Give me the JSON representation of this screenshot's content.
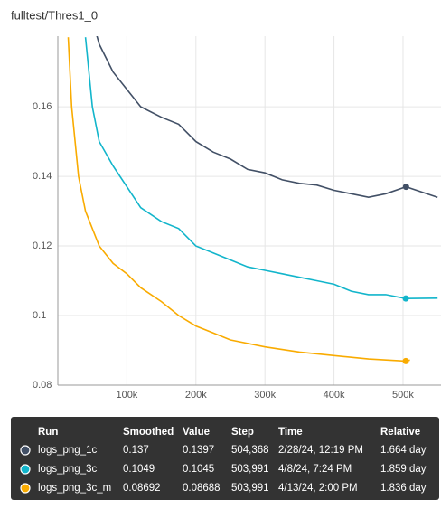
{
  "chart_data": {
    "type": "line",
    "title": "fulltest/Thres1_0",
    "xlim": [
      0,
      555000
    ],
    "ylim": [
      0.08,
      0.1803
    ],
    "yticks": [
      0.08,
      {
        "value": 0.1,
        "label": "0.1"
      },
      0.12,
      0.14,
      0.16
    ],
    "xticks": [
      {
        "value": 100000,
        "label": "100k"
      },
      {
        "value": 200000,
        "label": "200k"
      },
      {
        "value": 300000,
        "label": "300k"
      },
      {
        "value": 400000,
        "label": "400k"
      },
      {
        "value": 500000,
        "label": "500k"
      }
    ],
    "grid": true,
    "series": [
      {
        "name": "logs_png_1c",
        "color": "#425066",
        "x": [
          50000,
          60000,
          80000,
          100000,
          120000,
          150000,
          175000,
          200000,
          225000,
          250000,
          275000,
          300000,
          325000,
          350000,
          375000,
          400000,
          425000,
          450000,
          475000,
          504368,
          550000
        ],
        "values": [
          0.185,
          0.178,
          0.17,
          0.165,
          0.16,
          0.157,
          0.155,
          0.15,
          0.147,
          0.145,
          0.142,
          0.141,
          0.139,
          0.138,
          0.1375,
          0.136,
          0.135,
          0.134,
          0.135,
          0.137,
          0.134
        ]
      },
      {
        "name": "logs_png_3c",
        "color": "#12b5cb",
        "x": [
          40000,
          50000,
          60000,
          80000,
          100000,
          120000,
          150000,
          175000,
          200000,
          225000,
          250000,
          275000,
          300000,
          325000,
          350000,
          375000,
          400000,
          425000,
          450000,
          475000,
          503991,
          550000
        ],
        "values": [
          0.18,
          0.16,
          0.15,
          0.143,
          0.137,
          0.131,
          0.127,
          0.125,
          0.12,
          0.118,
          0.116,
          0.114,
          0.113,
          0.112,
          0.111,
          0.11,
          0.109,
          0.107,
          0.106,
          0.106,
          0.1049,
          0.105
        ]
      },
      {
        "name": "logs_png_3c_m",
        "color": "#f9ab00",
        "x": [
          15000,
          20000,
          30000,
          40000,
          60000,
          80000,
          100000,
          120000,
          150000,
          175000,
          200000,
          225000,
          250000,
          300000,
          350000,
          400000,
          450000,
          503991,
          510000
        ],
        "values": [
          0.18,
          0.16,
          0.14,
          0.13,
          0.12,
          0.115,
          0.112,
          0.108,
          0.104,
          0.1,
          0.097,
          0.095,
          0.093,
          0.091,
          0.0895,
          0.0885,
          0.0875,
          0.08692,
          0.0872
        ]
      }
    ],
    "tooltip": {
      "header": [
        "Run",
        "Smoothed",
        "Value",
        "Step",
        "Time",
        "Relative"
      ],
      "rows": [
        [
          "logs_png_1c",
          "0.137",
          "0.1397",
          "504,368",
          "2/28/24, 12:19 PM",
          "1.664 day"
        ],
        [
          "logs_png_3c",
          "0.1049",
          "0.1045",
          "503,991",
          "4/8/24, 7:24 PM",
          "1.859 day"
        ],
        [
          "logs_png_3c_m",
          "0.08692",
          "0.08688",
          "503,991",
          "4/13/24, 2:00 PM",
          "1.836 day"
        ]
      ]
    }
  }
}
